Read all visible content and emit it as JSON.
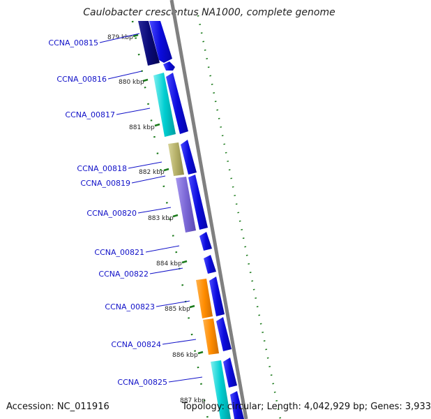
{
  "title": "Caulobacter crescentus NA1000, complete genome",
  "footer": {
    "accession": "Accession: NC_011916",
    "summary": "Topology: circular; Length: 4,042,929 bp; Genes: 3,933"
  },
  "colors": {
    "forward_strand": "#0a0adc",
    "backbone": "#808080",
    "tick": "#1a7a1a",
    "label": "#1010c8"
  },
  "ticks": [
    {
      "label": "879 kbp"
    },
    {
      "label": "880 kbp"
    },
    {
      "label": "881 kbp"
    },
    {
      "label": "882 kbp"
    },
    {
      "label": "883 kbp"
    },
    {
      "label": "884 kbp"
    },
    {
      "label": "885 kbp"
    },
    {
      "label": "886 kbp"
    },
    {
      "label": "887 kbp"
    }
  ],
  "genes": [
    {
      "name": "CCNA_00815",
      "color": "#0a0a78"
    },
    {
      "name": "CCNA_00816",
      "color": "#00ced1"
    },
    {
      "name": "CCNA_00817",
      "color": "#00ced1"
    },
    {
      "name": "CCNA_00818",
      "color": "#b5b068"
    },
    {
      "name": "CCNA_00819",
      "color": "#7b68d6"
    },
    {
      "name": "CCNA_00820",
      "color": "#7b68d6"
    },
    {
      "name": "CCNA_00821",
      "color": "#0a0adc"
    },
    {
      "name": "CCNA_00822",
      "color": "#0a0adc"
    },
    {
      "name": "CCNA_00823",
      "color": "#ff8c00"
    },
    {
      "name": "CCNA_00824",
      "color": "#ff8c00"
    },
    {
      "name": "CCNA_00825",
      "color": "#00ced1"
    }
  ]
}
